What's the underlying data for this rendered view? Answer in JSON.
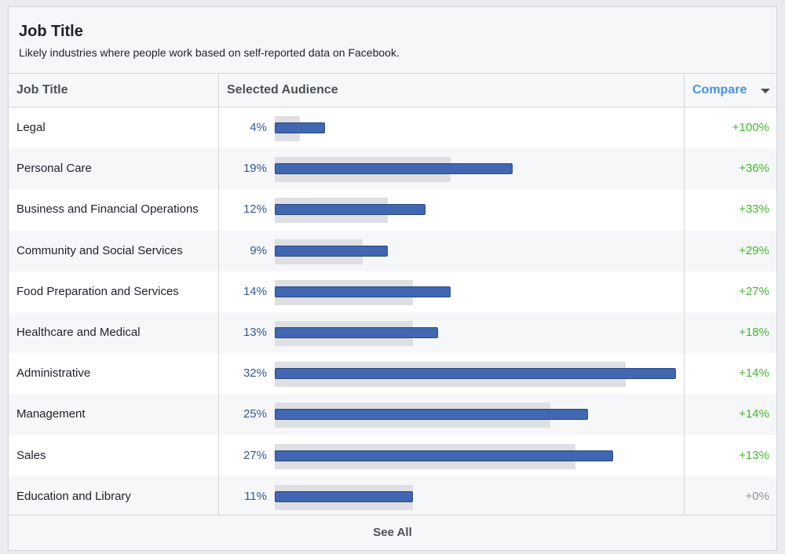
{
  "header": {
    "title": "Job Title",
    "subtitle": "Likely industries where people work based on self-reported data on Facebook."
  },
  "columns": {
    "job": "Job Title",
    "audience": "Selected Audience",
    "compare": "Compare"
  },
  "icons": {
    "compare_dropdown": "caret-down-icon"
  },
  "colors": {
    "selected_bar": "#4267b2",
    "baseline_bar": "#dddfe2",
    "positive": "#42b72a",
    "neutral": "#90949c",
    "link": "#4a90e2"
  },
  "rows": [
    {
      "name": "Legal",
      "pct": "4%",
      "audience": 4,
      "baseline": 2,
      "compare": "+100%"
    },
    {
      "name": "Personal Care",
      "pct": "19%",
      "audience": 19,
      "baseline": 14,
      "compare": "+36%"
    },
    {
      "name": "Business and Financial Operations",
      "pct": "12%",
      "audience": 12,
      "baseline": 9,
      "compare": "+33%"
    },
    {
      "name": "Community and Social Services",
      "pct": "9%",
      "audience": 9,
      "baseline": 7,
      "compare": "+29%"
    },
    {
      "name": "Food Preparation and Services",
      "pct": "14%",
      "audience": 14,
      "baseline": 11,
      "compare": "+27%"
    },
    {
      "name": "Healthcare and Medical",
      "pct": "13%",
      "audience": 13,
      "baseline": 11,
      "compare": "+18%"
    },
    {
      "name": "Administrative",
      "pct": "32%",
      "audience": 32,
      "baseline": 28,
      "compare": "+14%"
    },
    {
      "name": "Management",
      "pct": "25%",
      "audience": 25,
      "baseline": 22,
      "compare": "+14%"
    },
    {
      "name": "Sales",
      "pct": "27%",
      "audience": 27,
      "baseline": 24,
      "compare": "+13%"
    },
    {
      "name": "Education and Library",
      "pct": "11%",
      "audience": 11,
      "baseline": 11,
      "compare": "+0%"
    }
  ],
  "footer": {
    "see_all": "See All"
  }
}
